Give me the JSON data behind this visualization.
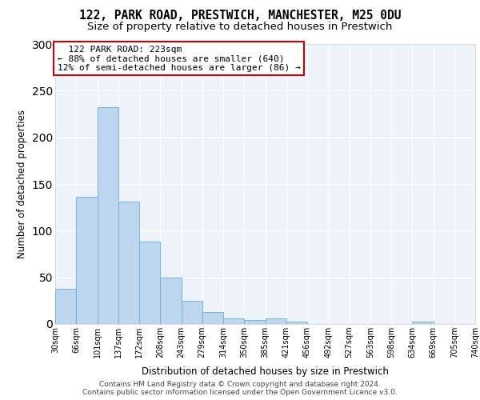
{
  "title1": "122, PARK ROAD, PRESTWICH, MANCHESTER, M25 0DU",
  "title2": "Size of property relative to detached houses in Prestwich",
  "xlabel": "Distribution of detached houses by size in Prestwich",
  "ylabel": "Number of detached properties",
  "bar_values": [
    38,
    136,
    232,
    131,
    88,
    50,
    25,
    13,
    6,
    4,
    6,
    3,
    0,
    0,
    0,
    0,
    0,
    3,
    0,
    0
  ],
  "bar_labels": [
    "30sqm",
    "66sqm",
    "101sqm",
    "137sqm",
    "172sqm",
    "208sqm",
    "243sqm",
    "279sqm",
    "314sqm",
    "350sqm",
    "385sqm",
    "421sqm",
    "456sqm",
    "492sqm",
    "527sqm",
    "563sqm",
    "598sqm",
    "634sqm",
    "669sqm",
    "705sqm",
    "740sqm"
  ],
  "bar_color": "#bdd5ee",
  "bar_edge_color": "#6aaed6",
  "property_label": "122 PARK ROAD: 223sqm",
  "pct_smaller": 88,
  "count_smaller": 640,
  "pct_larger": 12,
  "count_larger": 86,
  "ylim": [
    0,
    300
  ],
  "yticks": [
    0,
    50,
    100,
    150,
    200,
    250,
    300
  ],
  "footer_line1": "Contains HM Land Registry data © Crown copyright and database right 2024.",
  "footer_line2": "Contains public sector information licensed under the Open Government Licence v3.0.",
  "bg_color": "#edf2fb",
  "grid_color": "#ffffff",
  "title_fontsize": 10.5,
  "subtitle_fontsize": 9.5,
  "axis_label_fontsize": 8.5,
  "tick_fontsize": 7,
  "footer_fontsize": 6.5,
  "annot_fontsize": 8
}
